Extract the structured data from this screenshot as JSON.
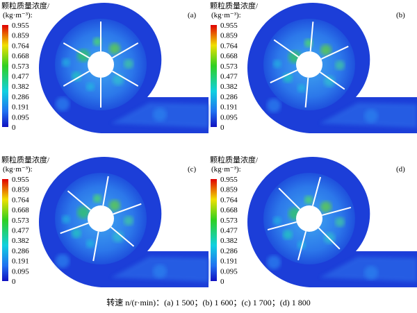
{
  "colorbar": {
    "title": "颗粒质量浓度/",
    "unit": "(kg·m⁻³):",
    "ticks": [
      "0.955",
      "0.859",
      "0.764",
      "0.668",
      "0.573",
      "0.477",
      "0.382",
      "0.286",
      "0.191",
      "0.095",
      "0"
    ]
  },
  "panels": [
    {
      "label": "(a)"
    },
    {
      "label": "(b)"
    },
    {
      "label": "(c)"
    },
    {
      "label": "(d)"
    }
  ],
  "caption": "转速 n/(r·min)：(a) 1 500；(b) 1 600；(c) 1 700；(d) 1 800"
}
